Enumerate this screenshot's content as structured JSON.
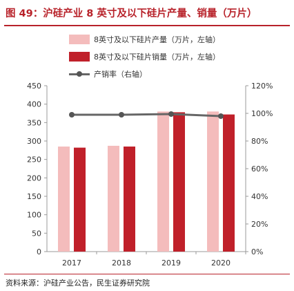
{
  "title": "图 49：沪硅产业 8 英寸及以下硅片产量、销量（万片）",
  "source": "资料来源：沪硅产业公告，民生证券研究院",
  "colors": {
    "title": "#b8222a",
    "production": "#f4bcbc",
    "sales": "#c0202a",
    "rate": "#666666"
  },
  "chart_data": {
    "type": "bar",
    "categories": [
      "2017",
      "2018",
      "2019",
      "2020"
    ],
    "series": [
      {
        "name": "8英寸及以下硅片产量（万片，左轴）",
        "type": "bar",
        "axis": "left",
        "values": [
          285,
          287,
          380,
          380
        ]
      },
      {
        "name": "8英寸及以下硅片销量（万片，左轴）",
        "type": "bar",
        "axis": "left",
        "values": [
          282,
          285,
          378,
          372
        ]
      },
      {
        "name": "产销率（右轴）",
        "type": "line",
        "axis": "right",
        "values": [
          99,
          99,
          99.5,
          98
        ]
      }
    ],
    "y_left": {
      "range": [
        0,
        450
      ],
      "ticks": [
        "0",
        "50",
        "100",
        "150",
        "200",
        "250",
        "300",
        "350",
        "400",
        "450"
      ]
    },
    "y_right": {
      "range": [
        0,
        120
      ],
      "ticks": [
        "0%",
        "20%",
        "40%",
        "60%",
        "80%",
        "100%",
        "120%"
      ]
    },
    "grid": false,
    "legend_position": "top"
  }
}
